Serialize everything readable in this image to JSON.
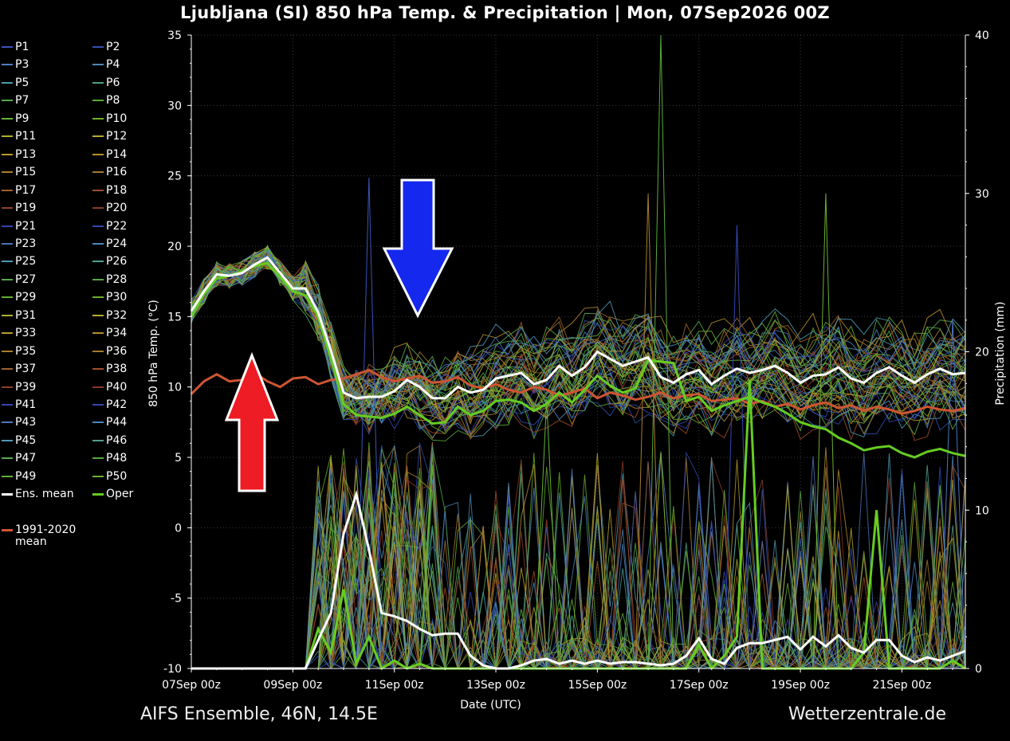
{
  "title": "Ljubljana  (SI)  850 hPa Temp. & Precipitation | Mon, 07Sep2026 00Z",
  "footer": {
    "left": "AIFS Ensemble, 46N, 14.5E",
    "right": "Wetterzentrale.de"
  },
  "legend": {
    "members": [
      "P1",
      "P2",
      "P3",
      "P4",
      "P5",
      "P6",
      "P7",
      "P8",
      "P9",
      "P10",
      "P11",
      "P12",
      "P13",
      "P14",
      "P15",
      "P16",
      "P17",
      "P18",
      "P19",
      "P20",
      "P21",
      "P22",
      "P23",
      "P24",
      "P25",
      "P26",
      "P27",
      "P28",
      "P29",
      "P30",
      "P31",
      "P32",
      "P33",
      "P34",
      "P35",
      "P36",
      "P37",
      "P38",
      "P39",
      "P40",
      "P41",
      "P42",
      "P43",
      "P44",
      "P45",
      "P46",
      "P47",
      "P48",
      "P49",
      "P50"
    ],
    "member_colors": [
      "#3a55b8",
      "#3150b0",
      "#4f7fc0",
      "#4a8ab8",
      "#4f9ab0",
      "#4fa08a",
      "#5aa84e",
      "#5aaa3a",
      "#66b234",
      "#6cb02e",
      "#b0b030",
      "#b8ac2e",
      "#b89a2e",
      "#b8902c",
      "#a87e2c",
      "#a47a2e",
      "#a0602c",
      "#a04e28",
      "#90402c",
      "#8a3a26",
      "#3345b0",
      "#3348b4",
      "#4a74bc",
      "#4c86bc",
      "#4f98b6",
      "#4fa292",
      "#5aa850",
      "#58aa3e",
      "#62b036",
      "#6ab030",
      "#b0b032",
      "#b6ac2e",
      "#b69a30",
      "#b48e2e",
      "#a6802c",
      "#a67a2e",
      "#9e622c",
      "#a04e28",
      "#8c3e2a",
      "#8a3a26",
      "#3046ae",
      "#3146b2",
      "#4c76be",
      "#4a88bc",
      "#4e9ab4",
      "#4ea08e",
      "#58a84e",
      "#58aa3c",
      "#64b036",
      "#6ab030"
    ],
    "ens_mean": {
      "label": "Ens. mean",
      "color": "#ffffff"
    },
    "oper": {
      "label": "Oper",
      "color": "#66cc22"
    },
    "climate": {
      "label_line1": "1991-2020",
      "label_line2": "mean",
      "color": "#cc5533"
    }
  },
  "arrows": {
    "red": "#ee1c24",
    "blue": "#1428ee",
    "outline": "#ffffff"
  },
  "chart_data": {
    "type": "line",
    "xlabel": "Date (UTC)",
    "ylabel_left": "850 hPa Temp. (°C)",
    "ylabel_right": "Precipitation (mm)",
    "ylim_left": [
      -10,
      35
    ],
    "ylim_right": [
      0,
      40
    ],
    "yticks_left": [
      -10,
      -5,
      0,
      5,
      10,
      15,
      20,
      25,
      30,
      35
    ],
    "yticks_right": [
      0,
      10,
      20,
      30,
      40
    ],
    "xlim_hours": [
      0,
      366
    ],
    "xticks": [
      {
        "hour": 0,
        "label": "07Sep 00z"
      },
      {
        "hour": 48,
        "label": "09Sep 00z"
      },
      {
        "hour": 96,
        "label": "11Sep 00z"
      },
      {
        "hour": 144,
        "label": "13Sep 00z"
      },
      {
        "hour": 192,
        "label": "15Sep 00z"
      },
      {
        "hour": 240,
        "label": "17Sep 00z"
      },
      {
        "hour": 288,
        "label": "19Sep 00z"
      },
      {
        "hour": 336,
        "label": "21Sep 00z"
      }
    ],
    "ens_mean_temp": {
      "hours": [
        0,
        6,
        12,
        18,
        24,
        30,
        36,
        42,
        48,
        54,
        60,
        66,
        72,
        78,
        84,
        90,
        96,
        102,
        108,
        114,
        120,
        126,
        132,
        138,
        144,
        150,
        156,
        162,
        168,
        174,
        180,
        186,
        192,
        198,
        204,
        210,
        216,
        222,
        228,
        234,
        240,
        246,
        252,
        258,
        264,
        270,
        276,
        282,
        288,
        294,
        300,
        306,
        312,
        318,
        324,
        330,
        336,
        342,
        348,
        354,
        360,
        366
      ],
      "values": [
        15.4,
        16.8,
        18.0,
        17.9,
        18.1,
        18.7,
        19.2,
        18.1,
        17.0,
        17.0,
        15.3,
        12.6,
        9.6,
        9.2,
        9.3,
        9.3,
        9.7,
        10.5,
        10.0,
        9.2,
        9.2,
        10.0,
        9.6,
        9.8,
        10.6,
        10.8,
        11.0,
        10.2,
        10.5,
        11.5,
        10.8,
        11.4,
        12.5,
        12.0,
        11.5,
        11.8,
        12.1,
        10.7,
        10.3,
        10.9,
        11.2,
        10.2,
        10.8,
        11.3,
        11.0,
        11.2,
        11.5,
        11.0,
        10.3,
        10.8,
        10.9,
        11.4,
        10.6,
        10.3,
        11.0,
        11.4,
        10.8,
        10.3,
        10.9,
        11.3,
        10.9,
        11.0
      ]
    },
    "oper_temp": {
      "hours": [
        0,
        6,
        12,
        18,
        24,
        30,
        36,
        42,
        48,
        54,
        60,
        66,
        72,
        78,
        84,
        90,
        96,
        102,
        108,
        114,
        120,
        126,
        132,
        138,
        144,
        150,
        156,
        162,
        168,
        174,
        180,
        186,
        192,
        198,
        204,
        210,
        216,
        222,
        228,
        234,
        240,
        246,
        252,
        258,
        264,
        270,
        276,
        282,
        288,
        294,
        300,
        306,
        312,
        318,
        324,
        330,
        336,
        342,
        348,
        354,
        360,
        366
      ],
      "values": [
        15.0,
        16.6,
        17.7,
        17.9,
        18.2,
        18.6,
        18.8,
        17.8,
        16.8,
        16.5,
        15.0,
        12.0,
        8.8,
        8.0,
        7.9,
        7.8,
        8.1,
        8.6,
        8.0,
        7.4,
        7.5,
        8.6,
        8.0,
        8.3,
        9.0,
        9.1,
        8.9,
        8.3,
        8.8,
        9.6,
        8.9,
        9.8,
        10.8,
        10.1,
        9.6,
        9.9,
        11.9,
        11.8,
        11.7,
        9.0,
        9.3,
        8.3,
        8.7,
        9.0,
        9.3,
        8.9,
        8.6,
        8.1,
        7.5,
        7.2,
        7.0,
        6.4,
        6.0,
        5.5,
        5.7,
        5.8,
        5.3,
        5.0,
        5.4,
        5.6,
        5.3,
        5.1
      ]
    },
    "climate_mean_temp": {
      "hours": [
        0,
        6,
        12,
        18,
        24,
        30,
        36,
        42,
        48,
        54,
        60,
        66,
        72,
        78,
        84,
        90,
        96,
        102,
        108,
        114,
        120,
        126,
        132,
        138,
        144,
        150,
        156,
        162,
        168,
        174,
        180,
        186,
        192,
        198,
        204,
        210,
        216,
        222,
        228,
        234,
        240,
        246,
        252,
        258,
        264,
        270,
        276,
        282,
        288,
        294,
        300,
        306,
        312,
        318,
        324,
        330,
        336,
        342,
        348,
        354,
        360,
        366
      ],
      "values": [
        9.5,
        10.4,
        10.9,
        10.4,
        10.5,
        11.0,
        10.4,
        10.0,
        10.6,
        10.7,
        10.2,
        10.5,
        10.6,
        10.9,
        11.2,
        10.7,
        10.4,
        10.6,
        10.8,
        10.3,
        10.4,
        10.7,
        10.1,
        9.9,
        10.2,
        9.8,
        9.6,
        10.0,
        9.8,
        9.4,
        9.6,
        9.9,
        9.2,
        9.6,
        9.4,
        9.1,
        9.3,
        9.6,
        9.2,
        9.4,
        9.5,
        9.0,
        9.1,
        9.2,
        8.8,
        9.0,
        8.6,
        8.8,
        8.4,
        8.7,
        8.9,
        8.5,
        8.7,
        8.3,
        8.6,
        8.4,
        8.1,
        8.3,
        8.6,
        8.4,
        8.3,
        8.5
      ]
    },
    "ens_mean_precip": {
      "hours": [
        0,
        6,
        12,
        18,
        24,
        30,
        36,
        42,
        48,
        54,
        60,
        66,
        72,
        78,
        84,
        90,
        96,
        102,
        108,
        114,
        120,
        126,
        132,
        138,
        144,
        150,
        156,
        162,
        168,
        174,
        180,
        186,
        192,
        198,
        204,
        210,
        216,
        222,
        228,
        234,
        240,
        246,
        252,
        258,
        264,
        270,
        276,
        282,
        288,
        294,
        300,
        306,
        312,
        318,
        324,
        330,
        336,
        342,
        348,
        354,
        360,
        366
      ],
      "values": [
        0,
        0,
        0,
        0,
        0,
        0,
        0,
        0,
        0,
        0,
        1.8,
        3.5,
        8.5,
        11.0,
        7.5,
        3.5,
        3.3,
        3.0,
        2.5,
        2.1,
        2.2,
        2.2,
        0.8,
        0.2,
        0,
        0,
        0.2,
        0.5,
        0.6,
        0.3,
        0.5,
        0.3,
        0.5,
        0.3,
        0.4,
        0.4,
        0.3,
        0.2,
        0.3,
        0.8,
        1.9,
        0.6,
        0.3,
        1.3,
        1.6,
        1.6,
        1.8,
        2.0,
        1.2,
        2.0,
        1.4,
        2.1,
        1.3,
        1.0,
        1.8,
        1.8,
        0.8,
        0.4,
        0.7,
        0.5,
        0.8,
        1.1
      ]
    },
    "oper_precip": {
      "hours": [
        0,
        6,
        12,
        18,
        24,
        30,
        36,
        42,
        48,
        54,
        60,
        66,
        72,
        78,
        84,
        90,
        96,
        102,
        108,
        114,
        120,
        126,
        132,
        138,
        144,
        150,
        156,
        162,
        168,
        174,
        180,
        186,
        192,
        198,
        204,
        210,
        216,
        222,
        228,
        234,
        240,
        246,
        252,
        258,
        264,
        270,
        276,
        282,
        288,
        294,
        300,
        306,
        312,
        318,
        324,
        330,
        336,
        342,
        348,
        354,
        360,
        366
      ],
      "values": [
        0,
        0,
        0,
        0,
        0,
        0,
        0,
        0,
        0,
        0,
        2.5,
        1.0,
        5.0,
        0.3,
        2.0,
        0,
        0.5,
        0,
        0.3,
        0,
        0,
        0,
        0,
        0,
        0,
        0,
        0,
        0,
        0,
        0,
        0,
        0,
        0,
        0,
        0,
        0,
        0,
        0,
        0,
        0,
        1.5,
        0,
        0.8,
        2.0,
        18.2,
        0,
        0,
        0,
        0,
        0,
        0,
        0,
        0,
        1.0,
        10.0,
        0,
        0,
        0,
        0,
        0,
        0.5,
        0
      ]
    },
    "member_spread_note": ""
  }
}
